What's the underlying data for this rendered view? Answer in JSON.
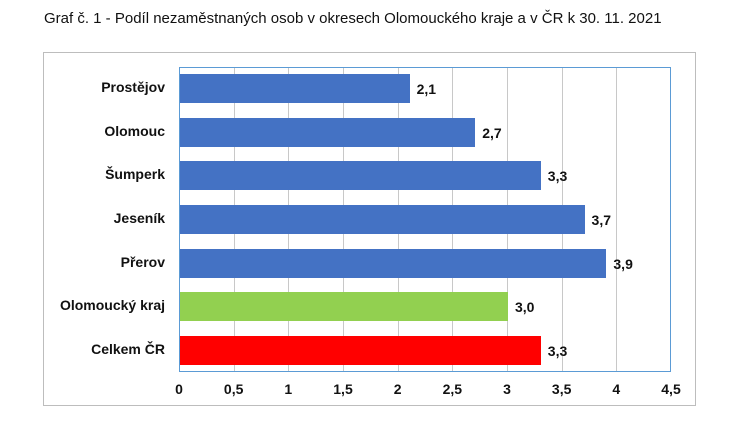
{
  "title": "Graf č. 1 - Podíl nezaměstnaných osob v okresech Olomouckého kraje a v ČR k 30. 11. 2021",
  "chart_data": {
    "type": "bar",
    "orientation": "horizontal",
    "title": "Graf č. 1 - Podíl nezaměstnaných osob v okresech Olomouckého kraje a v ČR k 30. 11. 2021",
    "xlabel": "",
    "ylabel": "",
    "xlim": [
      0,
      4.5
    ],
    "grid": true,
    "legend": null,
    "categories": [
      "Prostějov",
      "Olomouc",
      "Šumperk",
      "Jeseník",
      "Přerov",
      "Olomoucký kraj",
      "Celkem ČR"
    ],
    "values": [
      2.1,
      2.7,
      3.3,
      3.7,
      3.9,
      3.0,
      3.3
    ],
    "value_labels": [
      "2,1",
      "2,7",
      "3,3",
      "3,7",
      "3,9",
      "3,0",
      "3,3"
    ],
    "colors": [
      "#4472c4",
      "#4472c4",
      "#4472c4",
      "#4472c4",
      "#4472c4",
      "#92d050",
      "#ff0000"
    ],
    "x_ticks": [
      "0",
      "0,5",
      "1",
      "1,5",
      "2",
      "2,5",
      "3",
      "3,5",
      "4",
      "4,5"
    ]
  }
}
